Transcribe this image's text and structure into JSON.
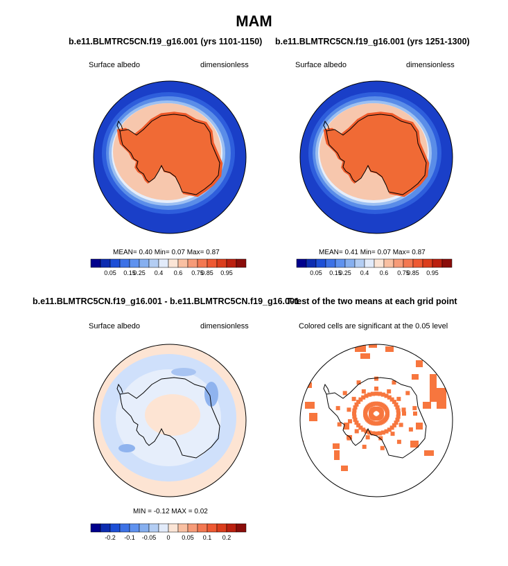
{
  "title": "MAM",
  "colors": {
    "ocean_dark": "#1a3fc8",
    "ice": "#ef5a2a",
    "diff_neg": "#cfe0fb",
    "diff_pos": "#fde4d3",
    "sig": "#f7763e"
  },
  "panels": [
    {
      "title": "b.e11.BLMTRC5CN.f19_g16.001 (yrs 1101-1150)",
      "left_label": "Surface albedo",
      "right_label": "dimensionless",
      "stats": "MEAN=   0.40  Min=   0.07  Max=   0.87"
    },
    {
      "title": "b.e11.BLMTRC5CN.f19_g16.001 (yrs 1251-1300)",
      "left_label": "Surface albedo",
      "right_label": "dimensionless",
      "stats": "MEAN=   0.41  Min=   0.07  Max=   0.87"
    },
    {
      "title": "b.e11.BLMTRC5CN.f19_g16.001 - b.e11.BLMTRC5CN.f19_g16.001",
      "left_label": "Surface albedo",
      "right_label": "dimensionless",
      "stats": "MIN =  -0.12 MAX =   0.02"
    },
    {
      "title": "T-test of the two means at each grid point",
      "subtitle": "Colored cells are significant at the 0.05 level"
    }
  ],
  "chart_data": [
    {
      "type": "heatmap",
      "title": "b.e11.BLMTRC5CN.f19_g16.001 (yrs 1101-1150)",
      "variable": "Surface albedo",
      "units": "dimensionless",
      "mean": 0.4,
      "min": 0.07,
      "max": 0.87,
      "colorbar_ticks": [
        "0.05",
        "0.15",
        "0.25",
        "0.4",
        "0.6",
        "0.75",
        "0.85",
        "0.95"
      ],
      "colorbar_colors": [
        "#00008c",
        "#0c2cb0",
        "#1d4fd6",
        "#3d72e6",
        "#5f92ef",
        "#86afef",
        "#b3cdf3",
        "#e2ebfa",
        "#fbe5d6",
        "#f9c0a2",
        "#f69b78",
        "#f37851",
        "#ee5932",
        "#db3d1c",
        "#bb200f",
        "#8a0d0a"
      ]
    },
    {
      "type": "heatmap",
      "title": "b.e11.BLMTRC5CN.f19_g16.001 (yrs 1251-1300)",
      "variable": "Surface albedo",
      "units": "dimensionless",
      "mean": 0.41,
      "min": 0.07,
      "max": 0.87,
      "colorbar_ticks": [
        "0.05",
        "0.15",
        "0.25",
        "0.4",
        "0.6",
        "0.75",
        "0.85",
        "0.95"
      ],
      "colorbar_colors": [
        "#00008c",
        "#0c2cb0",
        "#1d4fd6",
        "#3d72e6",
        "#5f92ef",
        "#86afef",
        "#b3cdf3",
        "#e2ebfa",
        "#fbe5d6",
        "#f9c0a2",
        "#f69b78",
        "#f37851",
        "#ee5932",
        "#db3d1c",
        "#bb200f",
        "#8a0d0a"
      ]
    },
    {
      "type": "heatmap",
      "title": "b.e11.BLMTRC5CN.f19_g16.001 - b.e11.BLMTRC5CN.f19_g16.001",
      "variable": "Surface albedo",
      "units": "dimensionless",
      "min": -0.12,
      "max": 0.02,
      "colorbar_ticks": [
        "-0.2",
        "-0.1",
        "-0.05",
        "0",
        "0.05",
        "0.1",
        "0.2"
      ],
      "colorbar_colors": [
        "#00008c",
        "#0c2cb0",
        "#1d4fd6",
        "#3d72e6",
        "#5f92ef",
        "#86afef",
        "#b3cdf3",
        "#e2ebfa",
        "#fbe5d6",
        "#f9c0a2",
        "#f69b78",
        "#f37851",
        "#ee5932",
        "#db3d1c",
        "#bb200f",
        "#8a0d0a"
      ]
    },
    {
      "type": "heatmap",
      "title": "T-test of the two means at each grid point",
      "subtitle": "Colored cells are significant at the 0.05 level"
    }
  ]
}
